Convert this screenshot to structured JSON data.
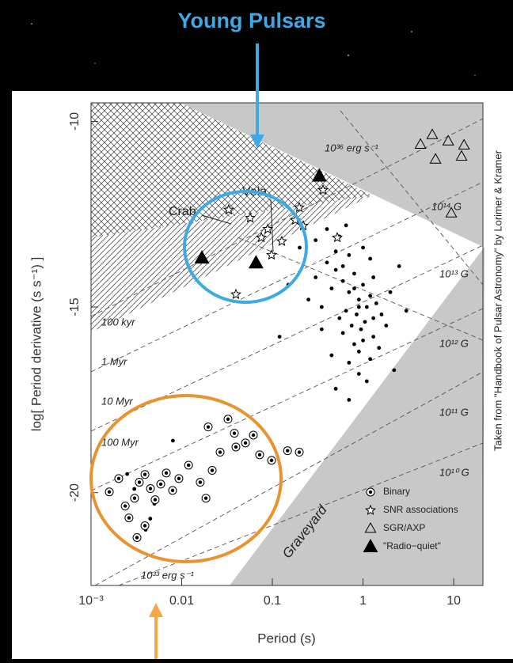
{
  "overlay": {
    "title": "Young Pulsars"
  },
  "chart_data": {
    "type": "scatter",
    "x_label": "Period (s)",
    "y_label": "log[ Period derivative (s s⁻¹) ]",
    "source": "Taken from \"Handbook of Pulsar Astronomy\" by Lorimer & Kramer",
    "xscale": "log",
    "xlim": [
      0.001,
      21
    ],
    "ylim": [
      -22.5,
      -9.5
    ],
    "xticks": [
      {
        "value": 0.001,
        "label": "10⁻³"
      },
      0.01,
      0.1,
      1,
      10
    ],
    "yticks": [
      -10,
      -15,
      -20
    ],
    "annotations": [
      "Crab",
      "Vela",
      "Graveyard",
      "10³⁶ erg s⁻¹",
      "10³³ erg s⁻¹",
      "10¹⁴ G",
      "10¹³ G",
      "10¹² G",
      "10¹¹ G",
      "10¹⁰ G",
      "100 kyr",
      "1 Myr",
      "10 Myr",
      "100 Myr"
    ],
    "series": [
      {
        "color": "#000000",
        "marker": "dot",
        "x": [
          0.3,
          0.45,
          0.5,
          0.6,
          0.7,
          0.8,
          0.9,
          1.0,
          1.1,
          1.2,
          1.4,
          1.6,
          0.35,
          0.55,
          0.65,
          0.75,
          0.85,
          0.95,
          1.05,
          1.3,
          0.4,
          0.5,
          0.6,
          0.7,
          0.8,
          0.9,
          1.0,
          1.2,
          1.5,
          2.0,
          0.25,
          0.3,
          0.4,
          0.55,
          0.7,
          0.9,
          1.1,
          1.3,
          1.8,
          2.5,
          0.45,
          0.6,
          0.8,
          1.0,
          1.3,
          0.5,
          0.7,
          0.9,
          1.2,
          0.65,
          0.2,
          0.15,
          0.12,
          0.35,
          2.2,
          3.0,
          0.003,
          0.005,
          0.0025,
          0.004,
          0.008,
          0.0045
        ],
        "values": [
          -14.2,
          -14.5,
          -14.0,
          -14.3,
          -14.6,
          -14.1,
          -14.8,
          -14.4,
          -15.0,
          -14.7,
          -14.9,
          -15.2,
          -15.0,
          -15.3,
          -15.1,
          -15.5,
          -15.2,
          -15.6,
          -15.4,
          -15.8,
          -13.8,
          -13.5,
          -13.9,
          -13.6,
          -16.0,
          -16.2,
          -15.9,
          -16.4,
          -16.1,
          -14.6,
          -14.8,
          -13.2,
          -12.9,
          -13.1,
          -16.5,
          -16.8,
          -17.0,
          -15.3,
          -15.5,
          -13.9,
          -16.3,
          -15.7,
          -14.5,
          -13.4,
          -14.2,
          -17.2,
          -17.5,
          -15.0,
          -13.7,
          -12.8,
          -13.4,
          -14.4,
          -15.8,
          -15.6,
          -16.7,
          -15.1,
          -19.9,
          -20.3,
          -19.5,
          -21.0,
          -18.6,
          -20.7
        ]
      },
      {
        "name": "Binary",
        "color": "#000000",
        "marker": "circled-dot",
        "x": [
          0.00159,
          0.00202,
          0.00238,
          0.00262,
          0.00302,
          0.00341,
          0.00393,
          0.00452,
          0.00509,
          0.00587,
          0.00676,
          0.00794,
          0.00931,
          0.0119,
          0.016,
          0.0185,
          0.0217,
          0.0265,
          0.0324,
          0.0396,
          0.0505,
          0.0617,
          0.0724,
          0.098,
          0.147,
          0.198,
          0.00321,
          0.00393,
          0.0196,
          0.0381
        ],
        "values": [
          -19.98,
          -19.62,
          -20.36,
          -20.68,
          -20.15,
          -19.72,
          -19.51,
          -19.89,
          -20.19,
          -19.77,
          -19.47,
          -19.94,
          -19.62,
          -19.26,
          -19.72,
          -20.15,
          -19.4,
          -18.91,
          -18.02,
          -18.77,
          -18.66,
          -18.45,
          -18.98,
          -19.13,
          -18.87,
          -18.91,
          -21.21,
          -20.89,
          -18.23,
          -18.4
        ]
      },
      {
        "name": "SNR associations",
        "color": "#000000",
        "marker": "star",
        "x": [
          0.033,
          0.089,
          0.0569,
          0.0755,
          0.098,
          0.127,
          0.179,
          0.219,
          0.198,
          0.362,
          0.52,
          0.0396
        ],
        "values": [
          -12.38,
          -12.9,
          -12.6,
          -13.13,
          -13.6,
          -13.23,
          -12.66,
          -12.81,
          -12.32,
          -11.85,
          -13.13,
          -14.66
        ]
      },
      {
        "name": "SGR/AXP",
        "color": "#000000",
        "marker": "open-triangle",
        "x": [
          4.3,
          5.8,
          8.7,
          13,
          6.3,
          12.2,
          9.4
        ],
        "values": [
          -10.62,
          -10.36,
          -10.53,
          -10.64,
          -11.02,
          -10.94,
          -12.47
        ]
      },
      {
        "name": "\"Radio−quiet\"",
        "color": "#000000",
        "marker": "filled-triangle",
        "x": [
          0.33,
          0.0167,
          0.066
        ],
        "values": [
          -11.47,
          -13.68,
          -13.81
        ]
      }
    ]
  }
}
